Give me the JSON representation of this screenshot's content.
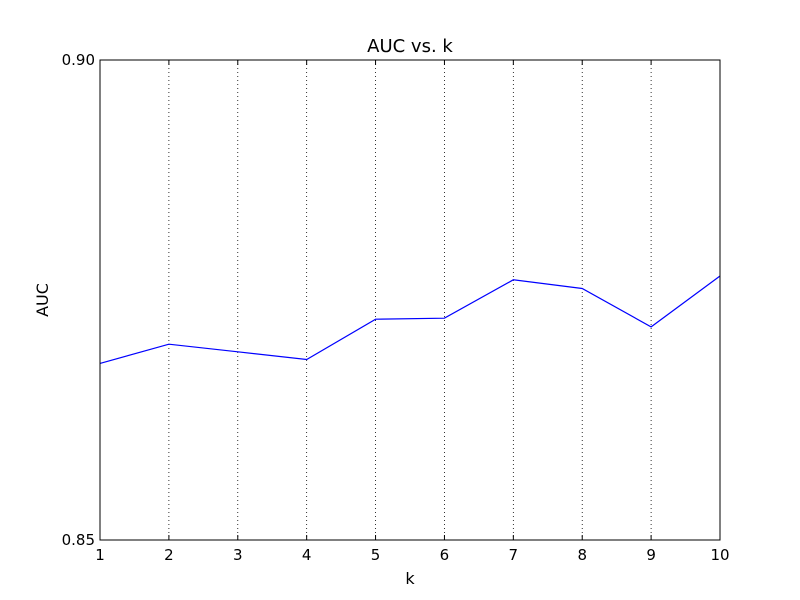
{
  "chart_data": {
    "type": "line",
    "title": "AUC vs. k",
    "xlabel": "k",
    "ylabel": "AUC",
    "x": [
      1,
      2,
      3,
      4,
      5,
      6,
      7,
      8,
      9,
      10
    ],
    "series": [
      {
        "color": "#0000ff",
        "values": [
          0.8684,
          0.8704,
          0.8696,
          0.8688,
          0.873,
          0.8731,
          0.8771,
          0.8762,
          0.8722,
          0.8775
        ]
      }
    ],
    "xlim": [
      1,
      10
    ],
    "ylim": [
      0.85,
      0.9
    ],
    "xticks": [
      "1",
      "2",
      "3",
      "4",
      "5",
      "6",
      "7",
      "8",
      "9",
      "10"
    ],
    "yticks": [
      "0.85",
      "0.90"
    ],
    "grid": "vertical dotted"
  }
}
